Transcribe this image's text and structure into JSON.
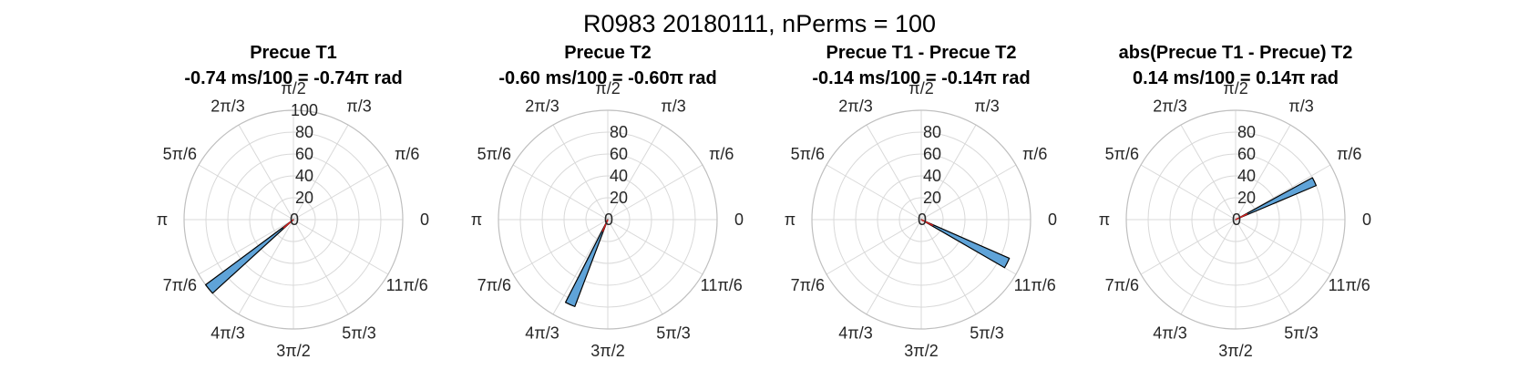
{
  "figure": {
    "title": "R0983 20180111, nPerms = 100"
  },
  "angle_labels": [
    "0",
    "π/6",
    "π/3",
    "π/2",
    "2π/3",
    "5π/6",
    "π",
    "7π/6",
    "4π/3",
    "3π/2",
    "5π/3",
    "11π/6"
  ],
  "colors": {
    "bar_fill": "#5fa3d8",
    "bar_edge": "#000000",
    "mean_line": "#d21f1f",
    "grid": "#d9d9d9",
    "axis_circle": "#bfbfbf"
  },
  "chart_data": [
    {
      "type": "polar-histogram",
      "title_line1": "Precue T1",
      "title_line2": "-0.74 ms/100 = -0.74π rad",
      "r_ticks": [
        "0",
        "20",
        "40",
        "60",
        "80",
        "100"
      ],
      "rlim": [
        0,
        100
      ],
      "bins": [
        {
          "angle_start": 3.78,
          "angle_end": 3.88,
          "count": 100
        }
      ],
      "mean_vector": {
        "angle": 3.83,
        "length": 12
      }
    },
    {
      "type": "polar-histogram",
      "title_line1": "Precue T2",
      "title_line2": "-0.60 ms/100 = -0.60π rad",
      "r_ticks": [
        "0",
        "20",
        "40",
        "60",
        "80"
      ],
      "rlim": [
        0,
        100
      ],
      "bins": [
        {
          "angle_start": 4.24,
          "angle_end": 4.35,
          "count": 85
        }
      ],
      "mean_vector": {
        "angle": 4.3,
        "length": 12
      }
    },
    {
      "type": "polar-histogram",
      "title_line1": "Precue T1 - Precue T2",
      "title_line2": "-0.14 ms/100 = -0.14π rad",
      "r_ticks": [
        "0",
        "20",
        "40",
        "60",
        "80"
      ],
      "rlim": [
        0,
        100
      ],
      "bins": [
        {
          "angle_start": 5.76,
          "angle_end": 5.87,
          "count": 88
        }
      ],
      "mean_vector": {
        "angle": 5.82,
        "length": 12
      }
    },
    {
      "type": "polar-histogram",
      "title_line1": "abs(Precue T1 - Precue) T2",
      "title_line2": "0.14 ms/100 = 0.14π rad",
      "r_ticks": [
        "0",
        "20",
        "40",
        "60",
        "80"
      ],
      "rlim": [
        0,
        100
      ],
      "bins": [
        {
          "angle_start": 0.4,
          "angle_end": 0.5,
          "count": 80
        }
      ],
      "mean_vector": {
        "angle": 0.45,
        "length": 12
      }
    }
  ]
}
